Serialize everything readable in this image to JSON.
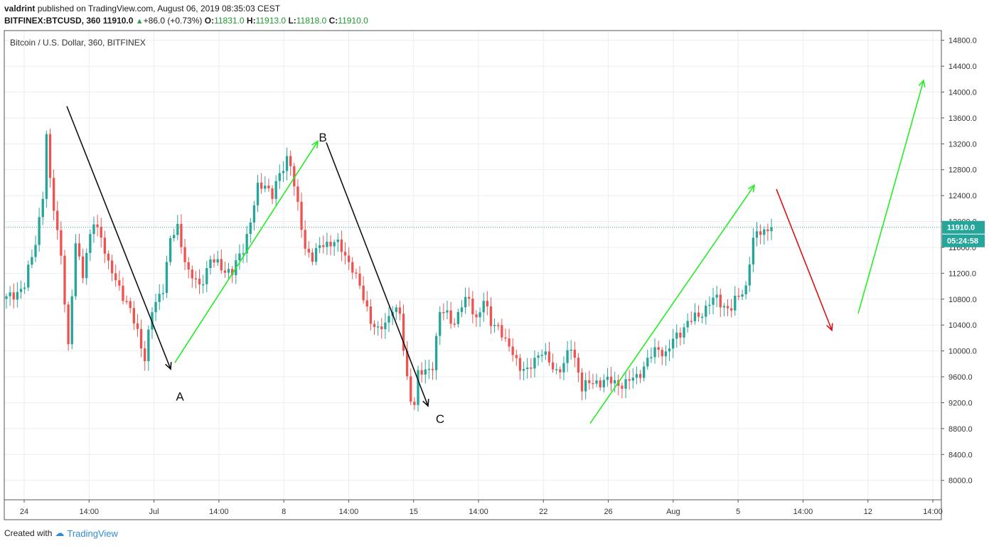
{
  "header": {
    "author": "valdrint",
    "published_text": "published on TradingView.com, August 06, 2019 08:35:03 CEST",
    "symbol": "BITFINEX:BTCUSD, 360",
    "last_price": "11910.0",
    "change": "+86.0 (+0.73%)",
    "o_label": "O:",
    "o_value": "11831.0",
    "h_label": "H:",
    "h_value": "11913.0",
    "l_label": "L:",
    "l_value": "11818.0",
    "c_label": "C:",
    "c_value": "11910.0"
  },
  "footer": {
    "created_with": "Created with",
    "brand": "TradingView"
  },
  "colors": {
    "up": "#26a69a",
    "down": "#ef5350",
    "arrow_green": "#22ee22",
    "arrow_red": "#dd1111",
    "arrow_black": "#111111",
    "grid": "#e8eef4",
    "price_tag": "#26a69a",
    "price_line": "#26a69a"
  },
  "chart_data": {
    "type": "candlestick",
    "title": "Bitcoin / U.S. Dollar, 360, BITFINEX",
    "ylim": [
      7700,
      14950
    ],
    "y_ticks": [
      8000,
      8400,
      8800,
      9200,
      9600,
      10000,
      10400,
      10800,
      11200,
      11600,
      12000,
      12400,
      12800,
      13200,
      13600,
      14000,
      14400,
      14800
    ],
    "y_tick_labels": [
      "8000.0",
      "8400.0",
      "8800.0",
      "9200.0",
      "9600.0",
      "10000.0",
      "10400.0",
      "10800.0",
      "11200.0",
      "11600.0",
      "12000.0",
      "12400.0",
      "12800.0",
      "13200.0",
      "13600.0",
      "14000.0",
      "14400.0",
      "14800.0"
    ],
    "x_ticks": [
      "24",
      "14:00",
      "Jul",
      "14:00",
      "8",
      "14:00",
      "15",
      "14:00",
      "22",
      "26",
      "Aug",
      "5",
      "14:00",
      "12",
      "14:00"
    ],
    "current_price": "11910.0",
    "current_price_value": 11910,
    "countdown": "05:24:58",
    "swing_points": {
      "A": 9750,
      "B": 13250,
      "C": 9150
    },
    "candle_anchors": [
      [
        0,
        10800
      ],
      [
        5,
        11000
      ],
      [
        8,
        11700
      ],
      [
        10,
        12400
      ],
      [
        11,
        13300
      ],
      [
        12,
        12600
      ],
      [
        15,
        11500
      ],
      [
        17,
        10000
      ],
      [
        19,
        11700
      ],
      [
        21,
        11200
      ],
      [
        24,
        12000
      ],
      [
        26,
        11800
      ],
      [
        28,
        11300
      ],
      [
        31,
        11000
      ],
      [
        34,
        10600
      ],
      [
        36,
        10300
      ],
      [
        38,
        9900
      ],
      [
        40,
        10600
      ],
      [
        43,
        11000
      ],
      [
        45,
        11700
      ],
      [
        47,
        11900
      ],
      [
        50,
        11200
      ],
      [
        53,
        11000
      ],
      [
        56,
        11400
      ],
      [
        59,
        11300
      ],
      [
        62,
        11200
      ],
      [
        65,
        11600
      ],
      [
        67,
        12000
      ],
      [
        69,
        12500
      ],
      [
        71,
        12600
      ],
      [
        73,
        12400
      ],
      [
        75,
        12700
      ],
      [
        77,
        13000
      ],
      [
        78,
        12900
      ],
      [
        80,
        12200
      ],
      [
        82,
        11600
      ],
      [
        84,
        11450
      ],
      [
        87,
        11650
      ],
      [
        90,
        11700
      ],
      [
        92,
        11550
      ],
      [
        95,
        11300
      ],
      [
        98,
        10800
      ],
      [
        100,
        10500
      ],
      [
        102,
        10300
      ],
      [
        104,
        10400
      ],
      [
        106,
        10700
      ],
      [
        108,
        10550
      ],
      [
        109,
        10000
      ],
      [
        110,
        9550
      ],
      [
        111,
        9300
      ],
      [
        112,
        9200
      ],
      [
        113,
        9650
      ],
      [
        115,
        9650
      ],
      [
        117,
        9800
      ],
      [
        119,
        10600
      ],
      [
        121,
        10550
      ],
      [
        123,
        10450
      ],
      [
        125,
        10700
      ],
      [
        127,
        10800
      ],
      [
        129,
        10500
      ],
      [
        131,
        10750
      ],
      [
        133,
        10450
      ],
      [
        135,
        10400
      ],
      [
        137,
        10100
      ],
      [
        139,
        10000
      ],
      [
        141,
        9750
      ],
      [
        143,
        9650
      ],
      [
        145,
        9900
      ],
      [
        147,
        10000
      ],
      [
        149,
        9800
      ],
      [
        151,
        9700
      ],
      [
        153,
        9800
      ],
      [
        155,
        10050
      ],
      [
        157,
        9700
      ],
      [
        158,
        9450
      ],
      [
        161,
        9500
      ],
      [
        164,
        9550
      ],
      [
        167,
        9500
      ],
      [
        170,
        9500
      ],
      [
        173,
        9600
      ],
      [
        176,
        9850
      ],
      [
        179,
        10050
      ],
      [
        181,
        9950
      ],
      [
        183,
        10150
      ],
      [
        185,
        10300
      ],
      [
        187,
        10450
      ],
      [
        189,
        10500
      ],
      [
        191,
        10600
      ],
      [
        193,
        10750
      ],
      [
        195,
        10800
      ],
      [
        197,
        10700
      ],
      [
        199,
        10650
      ],
      [
        201,
        10850
      ],
      [
        203,
        11000
      ],
      [
        204,
        11400
      ],
      [
        205,
        11700
      ],
      [
        207,
        11850
      ],
      [
        210,
        11910
      ]
    ],
    "candle_count": 211,
    "annotations": [
      {
        "label": "A",
        "price": 9300
      },
      {
        "label": "B",
        "price": 13300
      },
      {
        "label": "C",
        "price": 8950
      }
    ]
  }
}
